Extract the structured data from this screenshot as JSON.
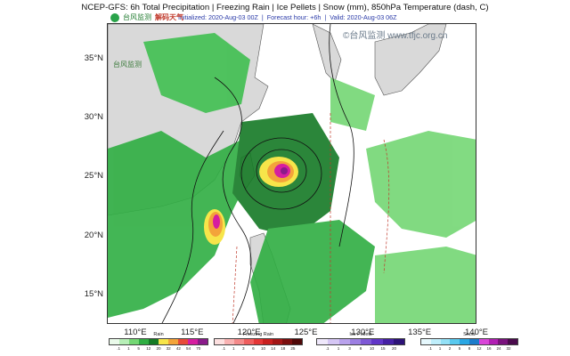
{
  "header": {
    "title": "NCEP-GFS: 6h Total Precipitation | Freezing Rain | Ice Pellets | Snow (mm), 850hPa Temperature (dash, C)",
    "initialized": "Initialized: 2020-Aug-03 00Z",
    "forecast_hour": "Forecast hour: +6h",
    "valid": "Valid: 2020-Aug-03 06Z",
    "separator": "|"
  },
  "branding": {
    "source_logo": "台风监测",
    "sina_logo": "解码天气",
    "map_logo": "台风监测",
    "watermark": "©台风监测 www.tfjc.org.cn"
  },
  "axes": {
    "lat_labels": [
      "35°N",
      "30°N",
      "25°N",
      "20°N",
      "15°N"
    ],
    "lon_labels": [
      "110°E",
      "115°E",
      "120°E",
      "125°E",
      "130°E",
      "135°E",
      "140°E"
    ],
    "lat_values": [
      35,
      30,
      25,
      20,
      15
    ],
    "lon_values": [
      110,
      115,
      120,
      125,
      130,
      135,
      140
    ],
    "lat_range": [
      12.5,
      38
    ],
    "lon_range": [
      107.5,
      140
    ]
  },
  "legends": [
    {
      "name": "Rain",
      "ticks": [
        ".1",
        "1",
        "5",
        "12",
        "20",
        "32",
        "42",
        "54",
        "70"
      ],
      "colors": [
        "#eafaea",
        "#b7efb7",
        "#74d774",
        "#2fae42",
        "#157a25",
        "#f7e54a",
        "#f3a43a",
        "#e84b3a",
        "#d61ea0",
        "#8a1a8a"
      ]
    },
    {
      "name": "Freezing Rain",
      "ticks": [
        ".1",
        "1",
        "3",
        "6",
        "10",
        "14",
        "18",
        "25"
      ],
      "colors": [
        "#fde0e0",
        "#f9b3b3",
        "#f48a8a",
        "#ef5d5d",
        "#e53636",
        "#c9201f",
        "#a31616",
        "#7a0e0e",
        "#4f0707"
      ]
    },
    {
      "name": "Ice Pellets",
      "ticks": [
        ".1",
        "1",
        "3",
        "6",
        "10",
        "15",
        "20"
      ],
      "colors": [
        "#efe8fb",
        "#d5c6f4",
        "#b9a2ec",
        "#9c7fe2",
        "#7e59d6",
        "#6136c8",
        "#4520a4",
        "#2c1278"
      ]
    },
    {
      "name": "Snow",
      "ticks": [
        ".1",
        "1",
        "2",
        "5",
        "8",
        "12",
        "16",
        "24",
        "32"
      ],
      "colors": [
        "#e6f8fd",
        "#bfeefb",
        "#93e0f6",
        "#5ac9ef",
        "#2aa6e3",
        "#1c7ccb",
        "#d945d8",
        "#b11fb3",
        "#7a127d",
        "#4a0a4c"
      ]
    }
  ]
}
